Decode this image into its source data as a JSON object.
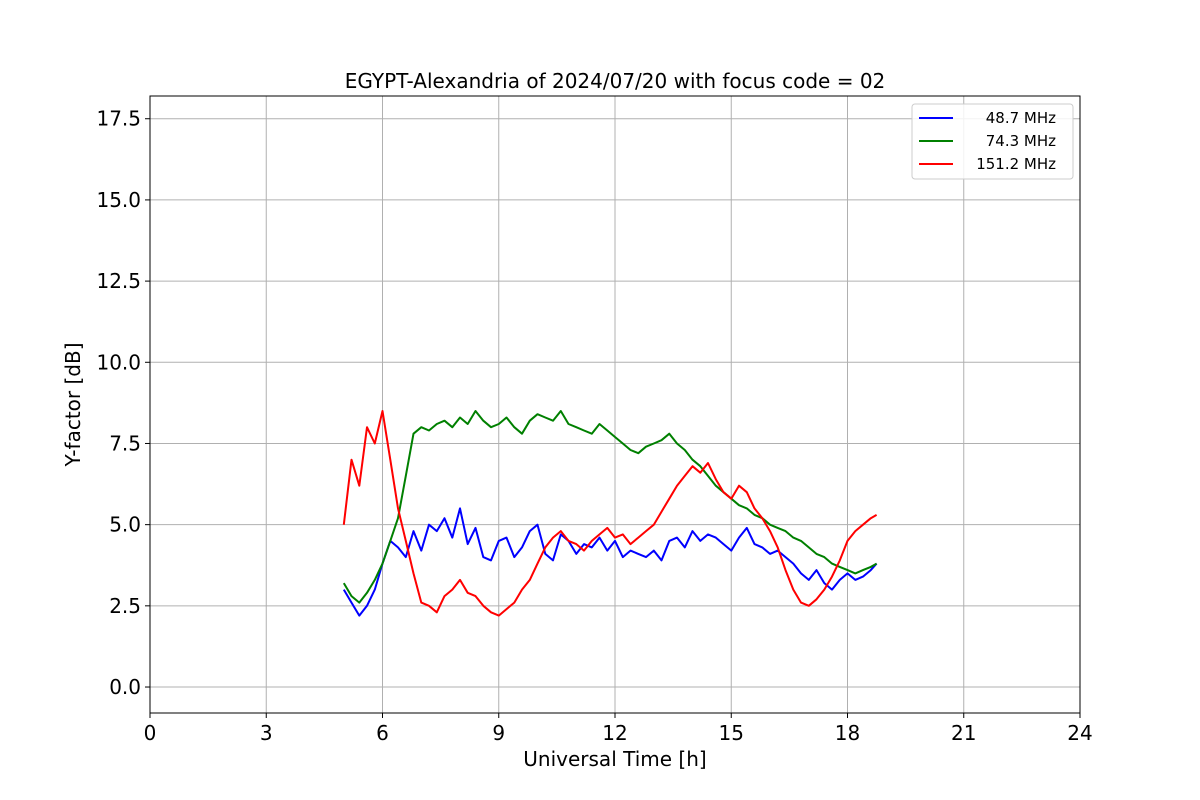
{
  "chart_data": {
    "type": "line",
    "title": "EGYPT-Alexandria of 2024/07/20 with focus code = 02",
    "xlabel": "Universal Time [h]",
    "ylabel": "Y-factor [dB]",
    "xlim": [
      0,
      24
    ],
    "ylim": [
      -0.8,
      18.2
    ],
    "xticks": [
      0,
      3,
      6,
      9,
      12,
      15,
      18,
      21,
      24
    ],
    "xtick_labels": [
      "0",
      "3",
      "6",
      "9",
      "12",
      "15",
      "18",
      "21",
      "24"
    ],
    "yticks": [
      0,
      2.5,
      5,
      7.5,
      10,
      12.5,
      15,
      17.5
    ],
    "ytick_labels": [
      "0.0",
      "2.5",
      "5.0",
      "7.5",
      "10.0",
      "12.5",
      "15.0",
      "17.5"
    ],
    "grid": true,
    "legend_position": "top-right",
    "series": [
      {
        "name": "48.7 MHz",
        "color": "#0000ff",
        "x": [
          5.0,
          5.2,
          5.4,
          5.6,
          5.8,
          6.0,
          6.2,
          6.4,
          6.6,
          6.8,
          7.0,
          7.2,
          7.4,
          7.6,
          7.8,
          8.0,
          8.2,
          8.4,
          8.6,
          8.8,
          9.0,
          9.2,
          9.4,
          9.6,
          9.8,
          10.0,
          10.2,
          10.4,
          10.6,
          10.8,
          11.0,
          11.2,
          11.4,
          11.6,
          11.8,
          12.0,
          12.2,
          12.4,
          12.6,
          12.8,
          13.0,
          13.2,
          13.4,
          13.6,
          13.8,
          14.0,
          14.2,
          14.4,
          14.6,
          14.8,
          15.0,
          15.2,
          15.4,
          15.6,
          15.8,
          16.0,
          16.2,
          16.4,
          16.6,
          16.8,
          17.0,
          17.2,
          17.4,
          17.6,
          17.8,
          18.0,
          18.2,
          18.4,
          18.6,
          18.75
        ],
        "values": [
          3.0,
          2.6,
          2.2,
          2.5,
          3.0,
          3.8,
          4.5,
          4.3,
          4.0,
          4.8,
          4.2,
          5.0,
          4.8,
          5.2,
          4.6,
          5.5,
          4.4,
          4.9,
          4.0,
          3.9,
          4.5,
          4.6,
          4.0,
          4.3,
          4.8,
          5.0,
          4.1,
          3.9,
          4.7,
          4.5,
          4.1,
          4.4,
          4.3,
          4.6,
          4.2,
          4.5,
          4.0,
          4.2,
          4.1,
          4.0,
          4.2,
          3.9,
          4.5,
          4.6,
          4.3,
          4.8,
          4.5,
          4.7,
          4.6,
          4.4,
          4.2,
          4.6,
          4.9,
          4.4,
          4.3,
          4.1,
          4.2,
          4.0,
          3.8,
          3.5,
          3.3,
          3.6,
          3.2,
          3.0,
          3.3,
          3.5,
          3.3,
          3.4,
          3.6,
          3.8
        ]
      },
      {
        "name": "74.3 MHz",
        "color": "#008000",
        "x": [
          5.0,
          5.2,
          5.4,
          5.6,
          5.8,
          6.0,
          6.2,
          6.4,
          6.6,
          6.8,
          7.0,
          7.2,
          7.4,
          7.6,
          7.8,
          8.0,
          8.2,
          8.4,
          8.6,
          8.8,
          9.0,
          9.2,
          9.4,
          9.6,
          9.8,
          10.0,
          10.2,
          10.4,
          10.6,
          10.8,
          11.0,
          11.2,
          11.4,
          11.6,
          11.8,
          12.0,
          12.2,
          12.4,
          12.6,
          12.8,
          13.0,
          13.2,
          13.4,
          13.6,
          13.8,
          14.0,
          14.2,
          14.4,
          14.6,
          14.8,
          15.0,
          15.2,
          15.4,
          15.6,
          15.8,
          16.0,
          16.2,
          16.4,
          16.6,
          16.8,
          17.0,
          17.2,
          17.4,
          17.6,
          17.8,
          18.0,
          18.2,
          18.4,
          18.6,
          18.75
        ],
        "values": [
          3.2,
          2.8,
          2.6,
          2.9,
          3.3,
          3.8,
          4.5,
          5.2,
          6.5,
          7.8,
          8.0,
          7.9,
          8.1,
          8.2,
          8.0,
          8.3,
          8.1,
          8.5,
          8.2,
          8.0,
          8.1,
          8.3,
          8.0,
          7.8,
          8.2,
          8.4,
          8.3,
          8.2,
          8.5,
          8.1,
          8.0,
          7.9,
          7.8,
          8.1,
          7.9,
          7.7,
          7.5,
          7.3,
          7.2,
          7.4,
          7.5,
          7.6,
          7.8,
          7.5,
          7.3,
          7.0,
          6.8,
          6.5,
          6.2,
          6.0,
          5.8,
          5.6,
          5.5,
          5.3,
          5.2,
          5.0,
          4.9,
          4.8,
          4.6,
          4.5,
          4.3,
          4.1,
          4.0,
          3.8,
          3.7,
          3.6,
          3.5,
          3.6,
          3.7,
          3.8
        ]
      },
      {
        "name": "151.2 MHz",
        "color": "#ff0000",
        "x": [
          5.0,
          5.2,
          5.4,
          5.6,
          5.8,
          6.0,
          6.2,
          6.4,
          6.6,
          6.8,
          7.0,
          7.2,
          7.4,
          7.6,
          7.8,
          8.0,
          8.2,
          8.4,
          8.6,
          8.8,
          9.0,
          9.2,
          9.4,
          9.6,
          9.8,
          10.0,
          10.2,
          10.4,
          10.6,
          10.8,
          11.0,
          11.2,
          11.4,
          11.6,
          11.8,
          12.0,
          12.2,
          12.4,
          12.6,
          12.8,
          13.0,
          13.2,
          13.4,
          13.6,
          13.8,
          14.0,
          14.2,
          14.4,
          14.6,
          14.8,
          15.0,
          15.2,
          15.4,
          15.6,
          15.8,
          16.0,
          16.2,
          16.4,
          16.6,
          16.8,
          17.0,
          17.2,
          17.4,
          17.6,
          17.8,
          18.0,
          18.2,
          18.4,
          18.6,
          18.75
        ],
        "values": [
          5.0,
          7.0,
          6.2,
          8.0,
          7.5,
          8.5,
          7.0,
          5.5,
          4.5,
          3.5,
          2.6,
          2.5,
          2.3,
          2.8,
          3.0,
          3.3,
          2.9,
          2.8,
          2.5,
          2.3,
          2.2,
          2.4,
          2.6,
          3.0,
          3.3,
          3.8,
          4.3,
          4.6,
          4.8,
          4.5,
          4.4,
          4.2,
          4.5,
          4.7,
          4.9,
          4.6,
          4.7,
          4.4,
          4.6,
          4.8,
          5.0,
          5.4,
          5.8,
          6.2,
          6.5,
          6.8,
          6.6,
          6.9,
          6.4,
          6.0,
          5.8,
          6.2,
          6.0,
          5.5,
          5.2,
          4.8,
          4.3,
          3.6,
          3.0,
          2.6,
          2.5,
          2.7,
          3.0,
          3.4,
          3.9,
          4.5,
          4.8,
          5.0,
          5.2,
          5.3
        ]
      }
    ]
  }
}
